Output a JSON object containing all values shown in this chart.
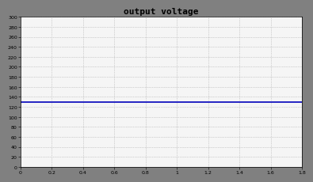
{
  "title": "output voltage",
  "xlim": [
    0,
    1.8
  ],
  "ylim": [
    0,
    300
  ],
  "xticks": [
    0,
    0.2,
    0.4,
    0.6,
    0.8,
    1.0,
    1.2,
    1.4,
    1.6,
    1.8
  ],
  "yticks": [
    0,
    20,
    40,
    60,
    80,
    100,
    120,
    140,
    160,
    180,
    200,
    220,
    240,
    260,
    280,
    300
  ],
  "line_y": 130,
  "line_color": "#0000bb",
  "line_width": 1.2,
  "bg_color": "#808080",
  "plot_bg": "#f5f5f5",
  "grid_color": "#aaaaaa",
  "title_fontsize": 8,
  "tick_fontsize": 4.5
}
